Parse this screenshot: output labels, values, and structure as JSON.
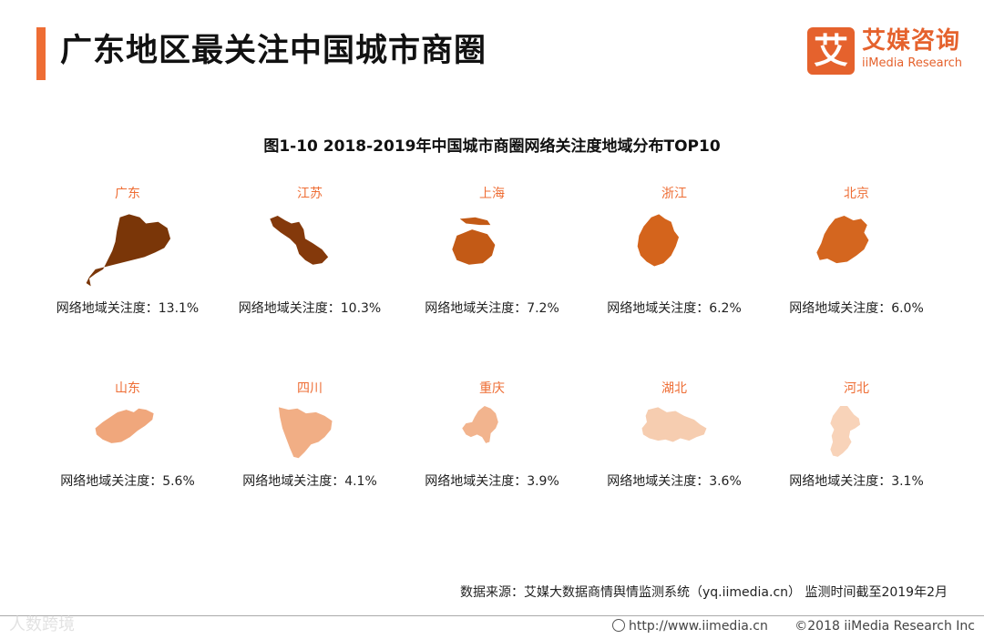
{
  "header": {
    "title": "广东地区最关注中国城市商圈",
    "brand_cn": "艾媒咨询",
    "brand_en": "iiMedia Research",
    "brand_mark": "艾"
  },
  "chart_data": {
    "type": "choropleth-small-multiples",
    "title": "图1-10 2018-2019年中国城市商圈网络关注度地域分布TOP10",
    "metric_label": "网络地域关注度：",
    "unit": "%",
    "color_scale": {
      "high": "#7a3608",
      "low": "#f8d3b6"
    },
    "items": [
      {
        "name": "广东",
        "value": 13.1,
        "display": "13.1%",
        "color": "#7a3608"
      },
      {
        "name": "江苏",
        "value": 10.3,
        "display": "10.3%",
        "color": "#84390b"
      },
      {
        "name": "上海",
        "value": 7.2,
        "display": "7.2%",
        "color": "#c35a16"
      },
      {
        "name": "浙江",
        "value": 6.2,
        "display": "6.2%",
        "color": "#d4641c"
      },
      {
        "name": "北京",
        "value": 6.0,
        "display": "6.0%",
        "color": "#d4661f"
      },
      {
        "name": "山东",
        "value": 5.6,
        "display": "5.6%",
        "color": "#f0a77c"
      },
      {
        "name": "四川",
        "value": 4.1,
        "display": "4.1%",
        "color": "#f1ae85"
      },
      {
        "name": "重庆",
        "value": 3.9,
        "display": "3.9%",
        "color": "#f2b48e"
      },
      {
        "name": "湖北",
        "value": 3.6,
        "display": "3.6%",
        "color": "#f6cdb0"
      },
      {
        "name": "河北",
        "value": 3.1,
        "display": "3.1%",
        "color": "#f8d3b9"
      }
    ]
  },
  "footer": {
    "source": "数据来源：艾媒大数据商情舆情监测系统（yq.iimedia.cn） 监测时间截至2019年2月",
    "watermark": "人数跨境",
    "url": "http://www.iimedia.cn",
    "copyright": "©2018  iiMedia Research  Inc"
  }
}
